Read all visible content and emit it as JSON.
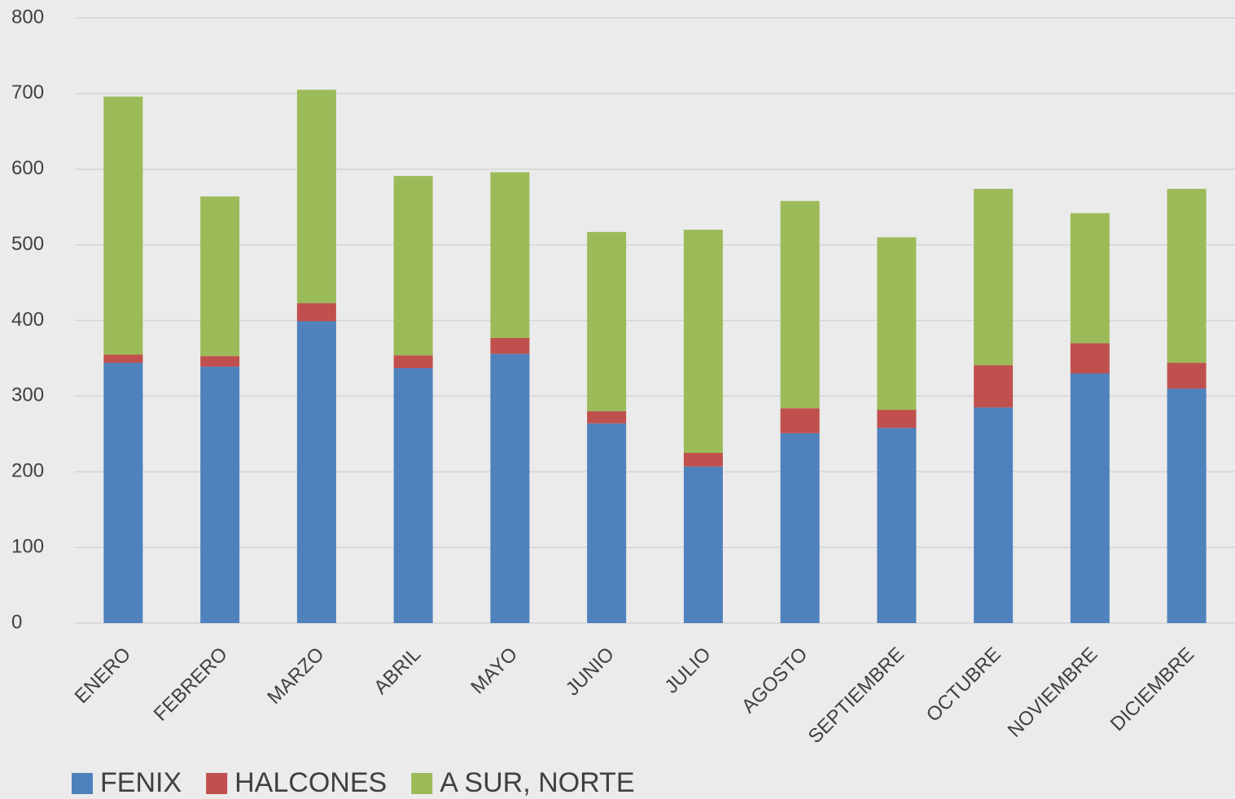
{
  "chart_data": {
    "type": "stacked_bar",
    "categories": [
      "ENERO",
      "FEBRERO",
      "MARZO",
      "ABRIL",
      "MAYO",
      "JUNIO",
      "JULIO",
      "AGOSTO",
      "SEPTIEMBRE",
      "OCTUBRE",
      "NOVIEMBRE",
      "DICIEMBRE"
    ],
    "series": [
      {
        "name": "FENIX",
        "color": "#4f81bd",
        "values": [
          344,
          339,
          399,
          337,
          356,
          264,
          207,
          251,
          258,
          285,
          330,
          310
        ]
      },
      {
        "name": "HALCONES",
        "color": "#c0504d",
        "values": [
          11,
          14,
          24,
          17,
          21,
          16,
          18,
          33,
          24,
          56,
          40,
          34
        ]
      },
      {
        "name": "A SUR, NORTE",
        "color": "#9bbb59",
        "values": [
          341,
          211,
          282,
          237,
          219,
          237,
          295,
          274,
          228,
          233,
          172,
          230
        ]
      }
    ],
    "ylim": [
      0,
      800
    ],
    "yticks": [
      0,
      100,
      200,
      300,
      400,
      500,
      600,
      700,
      800
    ],
    "grid": true,
    "legend": "bottom"
  }
}
